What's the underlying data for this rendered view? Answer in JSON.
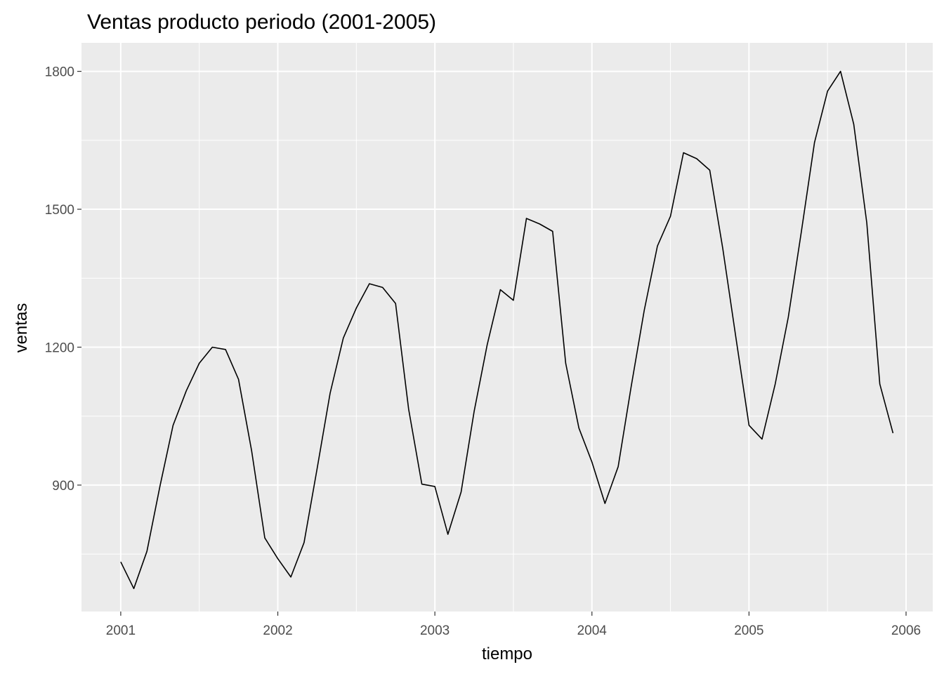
{
  "chart_data": {
    "type": "line",
    "title": "Ventas producto periodo (2001-2005)",
    "xlabel": "tiempo",
    "ylabel": "ventas",
    "xlim": [
      2000.75,
      2006.17
    ],
    "ylim": [
      625,
      1862
    ],
    "x_ticks": [
      2001,
      2002,
      2003,
      2004,
      2005,
      2006
    ],
    "x_tick_labels": [
      "2001",
      "2002",
      "2003",
      "2004",
      "2005",
      "2006"
    ],
    "y_ticks": [
      900,
      1200,
      1500,
      1800
    ],
    "y_tick_labels": [
      "900",
      "1200",
      "1500",
      "1800"
    ],
    "grid": true,
    "legend": "none",
    "colors": {
      "panel": "#ebebeb",
      "grid": "#ffffff",
      "line": "#000000",
      "tick_text": "#4d4d4d"
    },
    "x": [
      2001.0,
      2001.083,
      2001.167,
      2001.25,
      2001.333,
      2001.417,
      2001.5,
      2001.583,
      2001.667,
      2001.75,
      2001.833,
      2001.917,
      2002.0,
      2002.083,
      2002.167,
      2002.25,
      2002.333,
      2002.417,
      2002.5,
      2002.583,
      2002.667,
      2002.75,
      2002.833,
      2002.917,
      2003.0,
      2003.083,
      2003.167,
      2003.25,
      2003.333,
      2003.417,
      2003.5,
      2003.583,
      2003.667,
      2003.75,
      2003.833,
      2003.917,
      2004.0,
      2004.083,
      2004.167,
      2004.25,
      2004.333,
      2004.417,
      2004.5,
      2004.583,
      2004.667,
      2004.75,
      2004.833,
      2004.917,
      2005.0,
      2005.083,
      2005.167,
      2005.25,
      2005.333,
      2005.417,
      2005.5,
      2005.583,
      2005.667,
      2005.75,
      2005.833,
      2005.917
    ],
    "series": [
      {
        "values": [
          733,
          675,
          756,
          898,
          1030,
          1105,
          1165,
          1200,
          1195,
          1130,
          975,
          785,
          740,
          700,
          775,
          935,
          1100,
          1220,
          1285,
          1338,
          1330,
          1295,
          1065,
          902,
          897,
          793,
          885,
          1060,
          1205,
          1325,
          1302,
          1480,
          1468,
          1452,
          1165,
          1024,
          950,
          860,
          940,
          1115,
          1280,
          1420,
          1485,
          1623,
          1610,
          1585,
          1415,
          1220,
          1030,
          1000,
          1120,
          1265,
          1450,
          1645,
          1757,
          1800,
          1685,
          1470,
          1120,
          1013
        ]
      }
    ]
  }
}
